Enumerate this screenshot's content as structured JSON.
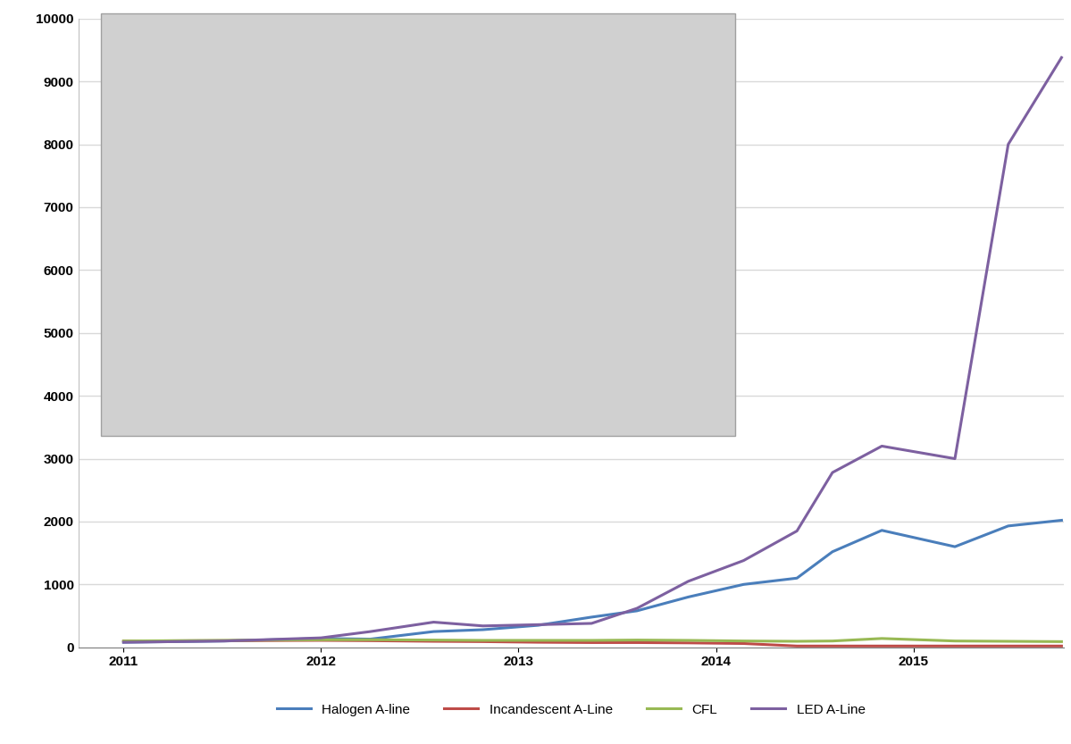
{
  "chart_data": {
    "type": "line",
    "x": [
      2011.0,
      2011.51,
      2012.0,
      2012.25,
      2012.57,
      2012.82,
      2013.1,
      2013.37,
      2013.6,
      2013.86,
      2014.14,
      2014.41,
      2014.59,
      2014.84,
      2015.21,
      2015.48,
      2015.75
    ],
    "series": [
      {
        "name": "Halogen A-line",
        "color": "#4a7ebb",
        "values": [
          80,
          100,
          140,
          130,
          250,
          280,
          350,
          480,
          580,
          800,
          1000,
          1100,
          1520,
          1860,
          1600,
          1930,
          2020
        ]
      },
      {
        "name": "Incandescent A-Line",
        "color": "#be4b48",
        "values": [
          100,
          105,
          110,
          105,
          95,
          90,
          80,
          75,
          75,
          70,
          60,
          20,
          20,
          20,
          20,
          20,
          20
        ]
      },
      {
        "name": "CFL",
        "color": "#98b954",
        "values": [
          100,
          110,
          120,
          120,
          115,
          110,
          110,
          110,
          115,
          110,
          100,
          95,
          100,
          140,
          100,
          95,
          90
        ]
      },
      {
        "name": "LED A-Line",
        "color": "#7d60a0",
        "values": [
          80,
          100,
          150,
          250,
          400,
          340,
          360,
          380,
          620,
          1050,
          1380,
          1850,
          2780,
          3200,
          3000,
          8000,
          9380
        ]
      }
    ],
    "xlim": [
      2010.77,
      2015.76
    ],
    "xticks": [
      2011,
      2012,
      2013,
      2014,
      2015
    ],
    "ylim": [
      0,
      10000
    ],
    "yticks": [
      0,
      1000,
      2000,
      3000,
      4000,
      5000,
      6000,
      7000,
      8000,
      9000,
      10000
    ],
    "grid": true,
    "legend": "bottom"
  }
}
